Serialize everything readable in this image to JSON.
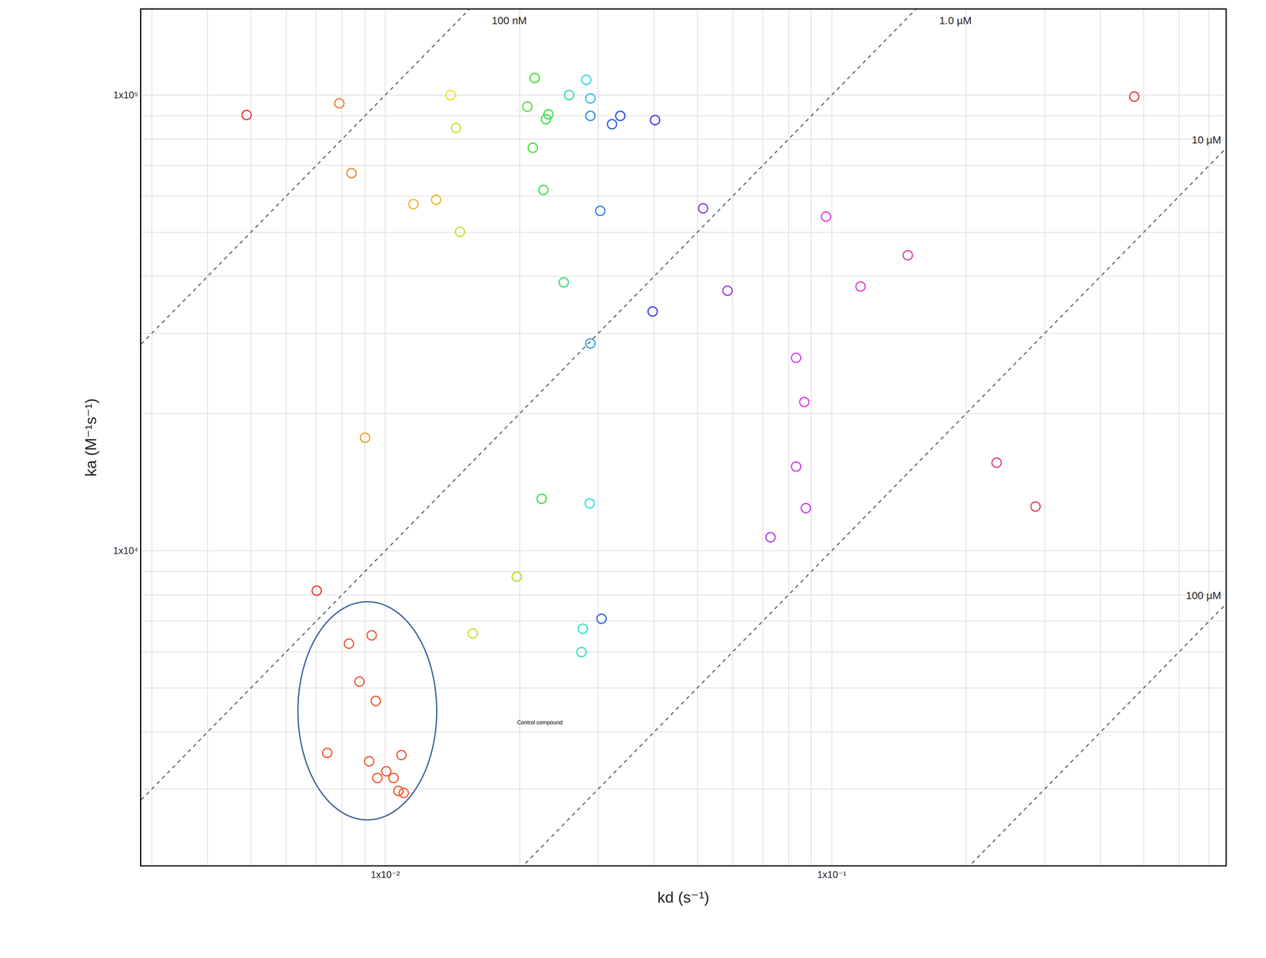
{
  "chart_data": {
    "type": "scatter",
    "marker": "circle-open",
    "log": true,
    "grid": true,
    "x_label": "kd (s⁻¹)",
    "y_label": "ka (M⁻¹s⁻¹)",
    "xlim": [
      0.00284,
      0.762
    ],
    "ylim": [
      2040,
      154000
    ],
    "xticks": [
      {
        "value": 0.01,
        "label": "1x10⁻²"
      },
      {
        "value": 0.1,
        "label": "1x10⁻¹"
      }
    ],
    "yticks": [
      {
        "value": 10000,
        "label": "1x10⁴"
      },
      {
        "value": 100000,
        "label": "1x10⁵"
      }
    ],
    "x": [
      0.00489,
      0.00789,
      0.0084,
      0.00901,
      0.01156,
      0.013,
      0.014,
      0.0144,
      0.0147,
      0.0216,
      0.0208,
      0.0232,
      0.0229,
      0.0214,
      0.0226,
      0.0251,
      0.0258,
      0.0282,
      0.0288,
      0.0288,
      0.0322,
      0.0336,
      0.0402,
      0.0303,
      0.0288,
      0.0397,
      0.0515,
      0.0584,
      0.0971,
      0.116,
      0.148,
      0.0832,
      0.0868,
      0.0832,
      0.0875,
      0.0729,
      0.234,
      0.286,
      0.476,
      0.0224,
      0.0287,
      0.0197,
      0.0157,
      0.0277,
      0.0275,
      0.0305,
      0.00702,
      0.00829,
      0.00932,
      0.00875,
      0.00952,
      0.00741,
      0.0092,
      0.01087,
      0.0096,
      0.01005,
      0.01043,
      0.0107,
      0.011
    ],
    "values": [
      90400,
      95900,
      67400,
      17700,
      57600,
      58900,
      100000,
      84700,
      50100,
      109000,
      94300,
      90700,
      88500,
      76600,
      61900,
      38800,
      100000,
      108000,
      98300,
      90000,
      86300,
      90000,
      88100,
      55700,
      28500,
      33500,
      56400,
      37200,
      54100,
      38000,
      44500,
      26500,
      21200,
      15300,
      12400,
      10700,
      15600,
      12500,
      99200,
      13000,
      12700,
      8770,
      6580,
      6740,
      5990,
      7090,
      8170,
      6250,
      6520,
      5160,
      4680,
      3600,
      3450,
      3560,
      3170,
      3280,
      3170,
      2970,
      2940
    ],
    "colors": [
      "#e8363a",
      "#f07a2a",
      "#f08a2a",
      "#f0a030",
      "#f5b52a",
      "#f5b52a",
      "#e8e02a",
      "#d0e030",
      "#c8e030",
      "#40e030",
      "#50e040",
      "#40e050",
      "#40e050",
      "#50e040",
      "#40e050",
      "#30e080",
      "#30e0a0",
      "#30e0e0",
      "#30c0e0",
      "#3090e0",
      "#3060e0",
      "#3050e8",
      "#4040e0",
      "#3080e0",
      "#30a0e0",
      "#4040e0",
      "#8040e0",
      "#a040e0",
      "#e040e0",
      "#e040d0",
      "#e040b0",
      "#e040e8",
      "#e040e8",
      "#d040e8",
      "#d040e8",
      "#b040e0",
      "#e8407a",
      "#e84060",
      "#e83a4a",
      "#40e040",
      "#30e0e0",
      "#b0e030",
      "#c8e030",
      "#30e0d0",
      "#30e0c0",
      "#3060e0",
      "#e83a30",
      "#f05a30",
      "#f05a30",
      "#f05a30",
      "#f05a30",
      "#f05a30",
      "#f05a30",
      "#f05a30",
      "#f05a30",
      "#f05a30",
      "#f05a30",
      "#f05a30",
      "#f05a30"
    ],
    "affinity_lines": [
      {
        "value": 1e-07,
        "label": "100 nM"
      },
      {
        "value": 1e-06,
        "label": "1.0 µM"
      },
      {
        "value": 1e-05,
        "label": "10 µM"
      },
      {
        "value": 0.0001,
        "label": "100 µM"
      }
    ],
    "annotations": [
      "Control compound"
    ]
  }
}
